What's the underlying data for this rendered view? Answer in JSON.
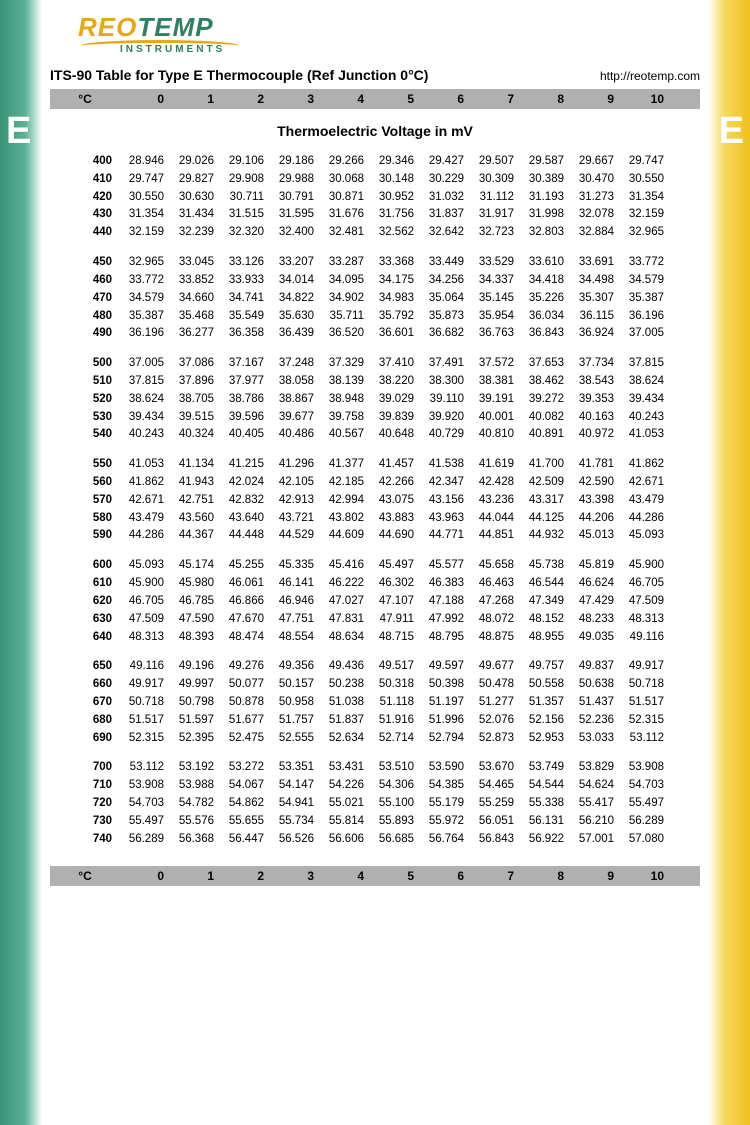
{
  "logo": {
    "brand_prefix": "REO",
    "brand_suffix": "TEMP",
    "subtitle": "INSTRUMENTS",
    "prefix_color": "#e6a817",
    "suffix_color": "#2d8060"
  },
  "side_letter": "E",
  "title": "ITS-90 Table for Type E Thermocouple (Ref Junction 0°C)",
  "url": "http://reotemp.com",
  "subtitle": "Thermoelectric Voltage in mV",
  "header": {
    "unit": "°C",
    "cols": [
      "0",
      "1",
      "2",
      "3",
      "4",
      "5",
      "6",
      "7",
      "8",
      "9",
      "10"
    ]
  },
  "colors": {
    "header_bg": "#b0b0b0",
    "left_grad_from": "#3a9478",
    "right_grad_from": "#f0c020"
  },
  "groups": [
    [
      {
        "t": "400",
        "v": [
          "28.946",
          "29.026",
          "29.106",
          "29.186",
          "29.266",
          "29.346",
          "29.427",
          "29.507",
          "29.587",
          "29.667",
          "29.747"
        ]
      },
      {
        "t": "410",
        "v": [
          "29.747",
          "29.827",
          "29.908",
          "29.988",
          "30.068",
          "30.148",
          "30.229",
          "30.309",
          "30.389",
          "30.470",
          "30.550"
        ]
      },
      {
        "t": "420",
        "v": [
          "30.550",
          "30.630",
          "30.711",
          "30.791",
          "30.871",
          "30.952",
          "31.032",
          "31.112",
          "31.193",
          "31.273",
          "31.354"
        ]
      },
      {
        "t": "430",
        "v": [
          "31.354",
          "31.434",
          "31.515",
          "31.595",
          "31.676",
          "31.756",
          "31.837",
          "31.917",
          "31.998",
          "32.078",
          "32.159"
        ]
      },
      {
        "t": "440",
        "v": [
          "32.159",
          "32.239",
          "32.320",
          "32.400",
          "32.481",
          "32.562",
          "32.642",
          "32.723",
          "32.803",
          "32.884",
          "32.965"
        ]
      }
    ],
    [
      {
        "t": "450",
        "v": [
          "32.965",
          "33.045",
          "33.126",
          "33.207",
          "33.287",
          "33.368",
          "33.449",
          "33.529",
          "33.610",
          "33.691",
          "33.772"
        ]
      },
      {
        "t": "460",
        "v": [
          "33.772",
          "33.852",
          "33.933",
          "34.014",
          "34.095",
          "34.175",
          "34.256",
          "34.337",
          "34.418",
          "34.498",
          "34.579"
        ]
      },
      {
        "t": "470",
        "v": [
          "34.579",
          "34.660",
          "34.741",
          "34.822",
          "34.902",
          "34.983",
          "35.064",
          "35.145",
          "35.226",
          "35.307",
          "35.387"
        ]
      },
      {
        "t": "480",
        "v": [
          "35.387",
          "35.468",
          "35.549",
          "35.630",
          "35.711",
          "35.792",
          "35.873",
          "35.954",
          "36.034",
          "36.115",
          "36.196"
        ]
      },
      {
        "t": "490",
        "v": [
          "36.196",
          "36.277",
          "36.358",
          "36.439",
          "36.520",
          "36.601",
          "36.682",
          "36.763",
          "36.843",
          "36.924",
          "37.005"
        ]
      }
    ],
    [
      {
        "t": "500",
        "v": [
          "37.005",
          "37.086",
          "37.167",
          "37.248",
          "37.329",
          "37.410",
          "37.491",
          "37.572",
          "37.653",
          "37.734",
          "37.815"
        ]
      },
      {
        "t": "510",
        "v": [
          "37.815",
          "37.896",
          "37.977",
          "38.058",
          "38.139",
          "38.220",
          "38.300",
          "38.381",
          "38.462",
          "38.543",
          "38.624"
        ]
      },
      {
        "t": "520",
        "v": [
          "38.624",
          "38.705",
          "38.786",
          "38.867",
          "38.948",
          "39.029",
          "39.110",
          "39.191",
          "39.272",
          "39.353",
          "39.434"
        ]
      },
      {
        "t": "530",
        "v": [
          "39.434",
          "39.515",
          "39.596",
          "39.677",
          "39.758",
          "39.839",
          "39.920",
          "40.001",
          "40.082",
          "40.163",
          "40.243"
        ]
      },
      {
        "t": "540",
        "v": [
          "40.243",
          "40.324",
          "40.405",
          "40.486",
          "40.567",
          "40.648",
          "40.729",
          "40.810",
          "40.891",
          "40.972",
          "41.053"
        ]
      }
    ],
    [
      {
        "t": "550",
        "v": [
          "41.053",
          "41.134",
          "41.215",
          "41.296",
          "41.377",
          "41.457",
          "41.538",
          "41.619",
          "41.700",
          "41.781",
          "41.862"
        ]
      },
      {
        "t": "560",
        "v": [
          "41.862",
          "41.943",
          "42.024",
          "42.105",
          "42.185",
          "42.266",
          "42.347",
          "42.428",
          "42.509",
          "42.590",
          "42.671"
        ]
      },
      {
        "t": "570",
        "v": [
          "42.671",
          "42.751",
          "42.832",
          "42.913",
          "42.994",
          "43.075",
          "43.156",
          "43.236",
          "43.317",
          "43.398",
          "43.479"
        ]
      },
      {
        "t": "580",
        "v": [
          "43.479",
          "43.560",
          "43.640",
          "43.721",
          "43.802",
          "43.883",
          "43.963",
          "44.044",
          "44.125",
          "44.206",
          "44.286"
        ]
      },
      {
        "t": "590",
        "v": [
          "44.286",
          "44.367",
          "44.448",
          "44.529",
          "44.609",
          "44.690",
          "44.771",
          "44.851",
          "44.932",
          "45.013",
          "45.093"
        ]
      }
    ],
    [
      {
        "t": "600",
        "v": [
          "45.093",
          "45.174",
          "45.255",
          "45.335",
          "45.416",
          "45.497",
          "45.577",
          "45.658",
          "45.738",
          "45.819",
          "45.900"
        ]
      },
      {
        "t": "610",
        "v": [
          "45.900",
          "45.980",
          "46.061",
          "46.141",
          "46.222",
          "46.302",
          "46.383",
          "46.463",
          "46.544",
          "46.624",
          "46.705"
        ]
      },
      {
        "t": "620",
        "v": [
          "46.705",
          "46.785",
          "46.866",
          "46.946",
          "47.027",
          "47.107",
          "47.188",
          "47.268",
          "47.349",
          "47.429",
          "47.509"
        ]
      },
      {
        "t": "630",
        "v": [
          "47.509",
          "47.590",
          "47.670",
          "47.751",
          "47.831",
          "47.911",
          "47.992",
          "48.072",
          "48.152",
          "48.233",
          "48.313"
        ]
      },
      {
        "t": "640",
        "v": [
          "48.313",
          "48.393",
          "48.474",
          "48.554",
          "48.634",
          "48.715",
          "48.795",
          "48.875",
          "48.955",
          "49.035",
          "49.116"
        ]
      }
    ],
    [
      {
        "t": "650",
        "v": [
          "49.116",
          "49.196",
          "49.276",
          "49.356",
          "49.436",
          "49.517",
          "49.597",
          "49.677",
          "49.757",
          "49.837",
          "49.917"
        ]
      },
      {
        "t": "660",
        "v": [
          "49.917",
          "49.997",
          "50.077",
          "50.157",
          "50.238",
          "50.318",
          "50.398",
          "50.478",
          "50.558",
          "50.638",
          "50.718"
        ]
      },
      {
        "t": "670",
        "v": [
          "50.718",
          "50.798",
          "50.878",
          "50.958",
          "51.038",
          "51.118",
          "51.197",
          "51.277",
          "51.357",
          "51.437",
          "51.517"
        ]
      },
      {
        "t": "680",
        "v": [
          "51.517",
          "51.597",
          "51.677",
          "51.757",
          "51.837",
          "51.916",
          "51.996",
          "52.076",
          "52.156",
          "52.236",
          "52.315"
        ]
      },
      {
        "t": "690",
        "v": [
          "52.315",
          "52.395",
          "52.475",
          "52.555",
          "52.634",
          "52.714",
          "52.794",
          "52.873",
          "52.953",
          "53.033",
          "53.112"
        ]
      }
    ],
    [
      {
        "t": "700",
        "v": [
          "53.112",
          "53.192",
          "53.272",
          "53.351",
          "53.431",
          "53.510",
          "53.590",
          "53.670",
          "53.749",
          "53.829",
          "53.908"
        ]
      },
      {
        "t": "710",
        "v": [
          "53.908",
          "53.988",
          "54.067",
          "54.147",
          "54.226",
          "54.306",
          "54.385",
          "54.465",
          "54.544",
          "54.624",
          "54.703"
        ]
      },
      {
        "t": "720",
        "v": [
          "54.703",
          "54.782",
          "54.862",
          "54.941",
          "55.021",
          "55.100",
          "55.179",
          "55.259",
          "55.338",
          "55.417",
          "55.497"
        ]
      },
      {
        "t": "730",
        "v": [
          "55.497",
          "55.576",
          "55.655",
          "55.734",
          "55.814",
          "55.893",
          "55.972",
          "56.051",
          "56.131",
          "56.210",
          "56.289"
        ]
      },
      {
        "t": "740",
        "v": [
          "56.289",
          "56.368",
          "56.447",
          "56.526",
          "56.606",
          "56.685",
          "56.764",
          "56.843",
          "56.922",
          "57.001",
          "57.080"
        ]
      }
    ]
  ]
}
